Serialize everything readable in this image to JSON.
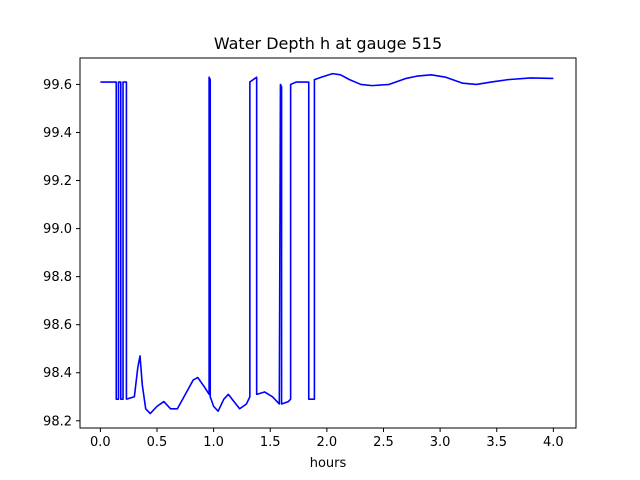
{
  "chart_data": {
    "type": "line",
    "title": "Water Depth h at gauge 515",
    "xlabel": "hours",
    "ylabel": "",
    "xlim": [
      -0.18,
      4.2
    ],
    "ylim": [
      98.17,
      99.71
    ],
    "xticks": [
      0.0,
      0.5,
      1.0,
      1.5,
      2.0,
      2.5,
      3.0,
      3.5,
      4.0
    ],
    "xtick_labels": [
      "0.0",
      "0.5",
      "1.0",
      "1.5",
      "2.0",
      "2.5",
      "3.0",
      "3.5",
      "4.0"
    ],
    "yticks": [
      98.2,
      98.4,
      98.6,
      98.8,
      99.0,
      99.2,
      99.4,
      99.6
    ],
    "ytick_labels": [
      "98.2",
      "98.4",
      "98.6",
      "98.8",
      "99.0",
      "99.2",
      "99.4",
      "99.6"
    ],
    "grid": false,
    "series": [
      {
        "color": "#0000ff",
        "points": [
          [
            0.0,
            99.61
          ],
          [
            0.14,
            99.61
          ],
          [
            0.14,
            98.29
          ],
          [
            0.16,
            98.29
          ],
          [
            0.16,
            99.61
          ],
          [
            0.18,
            99.61
          ],
          [
            0.18,
            98.29
          ],
          [
            0.2,
            98.29
          ],
          [
            0.2,
            99.61
          ],
          [
            0.23,
            99.61
          ],
          [
            0.23,
            98.29
          ],
          [
            0.3,
            98.3
          ],
          [
            0.33,
            98.42
          ],
          [
            0.35,
            98.47
          ],
          [
            0.37,
            98.35
          ],
          [
            0.4,
            98.25
          ],
          [
            0.44,
            98.23
          ],
          [
            0.5,
            98.26
          ],
          [
            0.56,
            98.28
          ],
          [
            0.62,
            98.25
          ],
          [
            0.68,
            98.25
          ],
          [
            0.75,
            98.31
          ],
          [
            0.82,
            98.37
          ],
          [
            0.86,
            98.38
          ],
          [
            0.92,
            98.34
          ],
          [
            0.96,
            98.31
          ],
          [
            0.96,
            99.63
          ],
          [
            0.97,
            99.62
          ],
          [
            0.97,
            98.3
          ],
          [
            1.0,
            98.26
          ],
          [
            1.04,
            98.24
          ],
          [
            1.09,
            98.29
          ],
          [
            1.13,
            98.31
          ],
          [
            1.18,
            98.28
          ],
          [
            1.23,
            98.25
          ],
          [
            1.29,
            98.27
          ],
          [
            1.32,
            98.3
          ],
          [
            1.32,
            99.61
          ],
          [
            1.38,
            99.63
          ],
          [
            1.38,
            98.31
          ],
          [
            1.45,
            98.32
          ],
          [
            1.52,
            98.3
          ],
          [
            1.58,
            98.27
          ],
          [
            1.59,
            99.6
          ],
          [
            1.6,
            99.59
          ],
          [
            1.6,
            98.27
          ],
          [
            1.66,
            98.28
          ],
          [
            1.68,
            98.29
          ],
          [
            1.68,
            99.6
          ],
          [
            1.73,
            99.61
          ],
          [
            1.84,
            99.61
          ],
          [
            1.84,
            98.29
          ],
          [
            1.89,
            98.29
          ],
          [
            1.89,
            99.62
          ],
          [
            1.95,
            99.63
          ],
          [
            2.05,
            99.645
          ],
          [
            2.12,
            99.64
          ],
          [
            2.2,
            99.62
          ],
          [
            2.3,
            99.6
          ],
          [
            2.4,
            99.595
          ],
          [
            2.55,
            99.6
          ],
          [
            2.7,
            99.625
          ],
          [
            2.8,
            99.635
          ],
          [
            2.92,
            99.64
          ],
          [
            3.05,
            99.63
          ],
          [
            3.2,
            99.605
          ],
          [
            3.32,
            99.6
          ],
          [
            3.45,
            99.61
          ],
          [
            3.6,
            99.62
          ],
          [
            3.8,
            99.627
          ],
          [
            4.0,
            99.625
          ]
        ]
      }
    ]
  }
}
